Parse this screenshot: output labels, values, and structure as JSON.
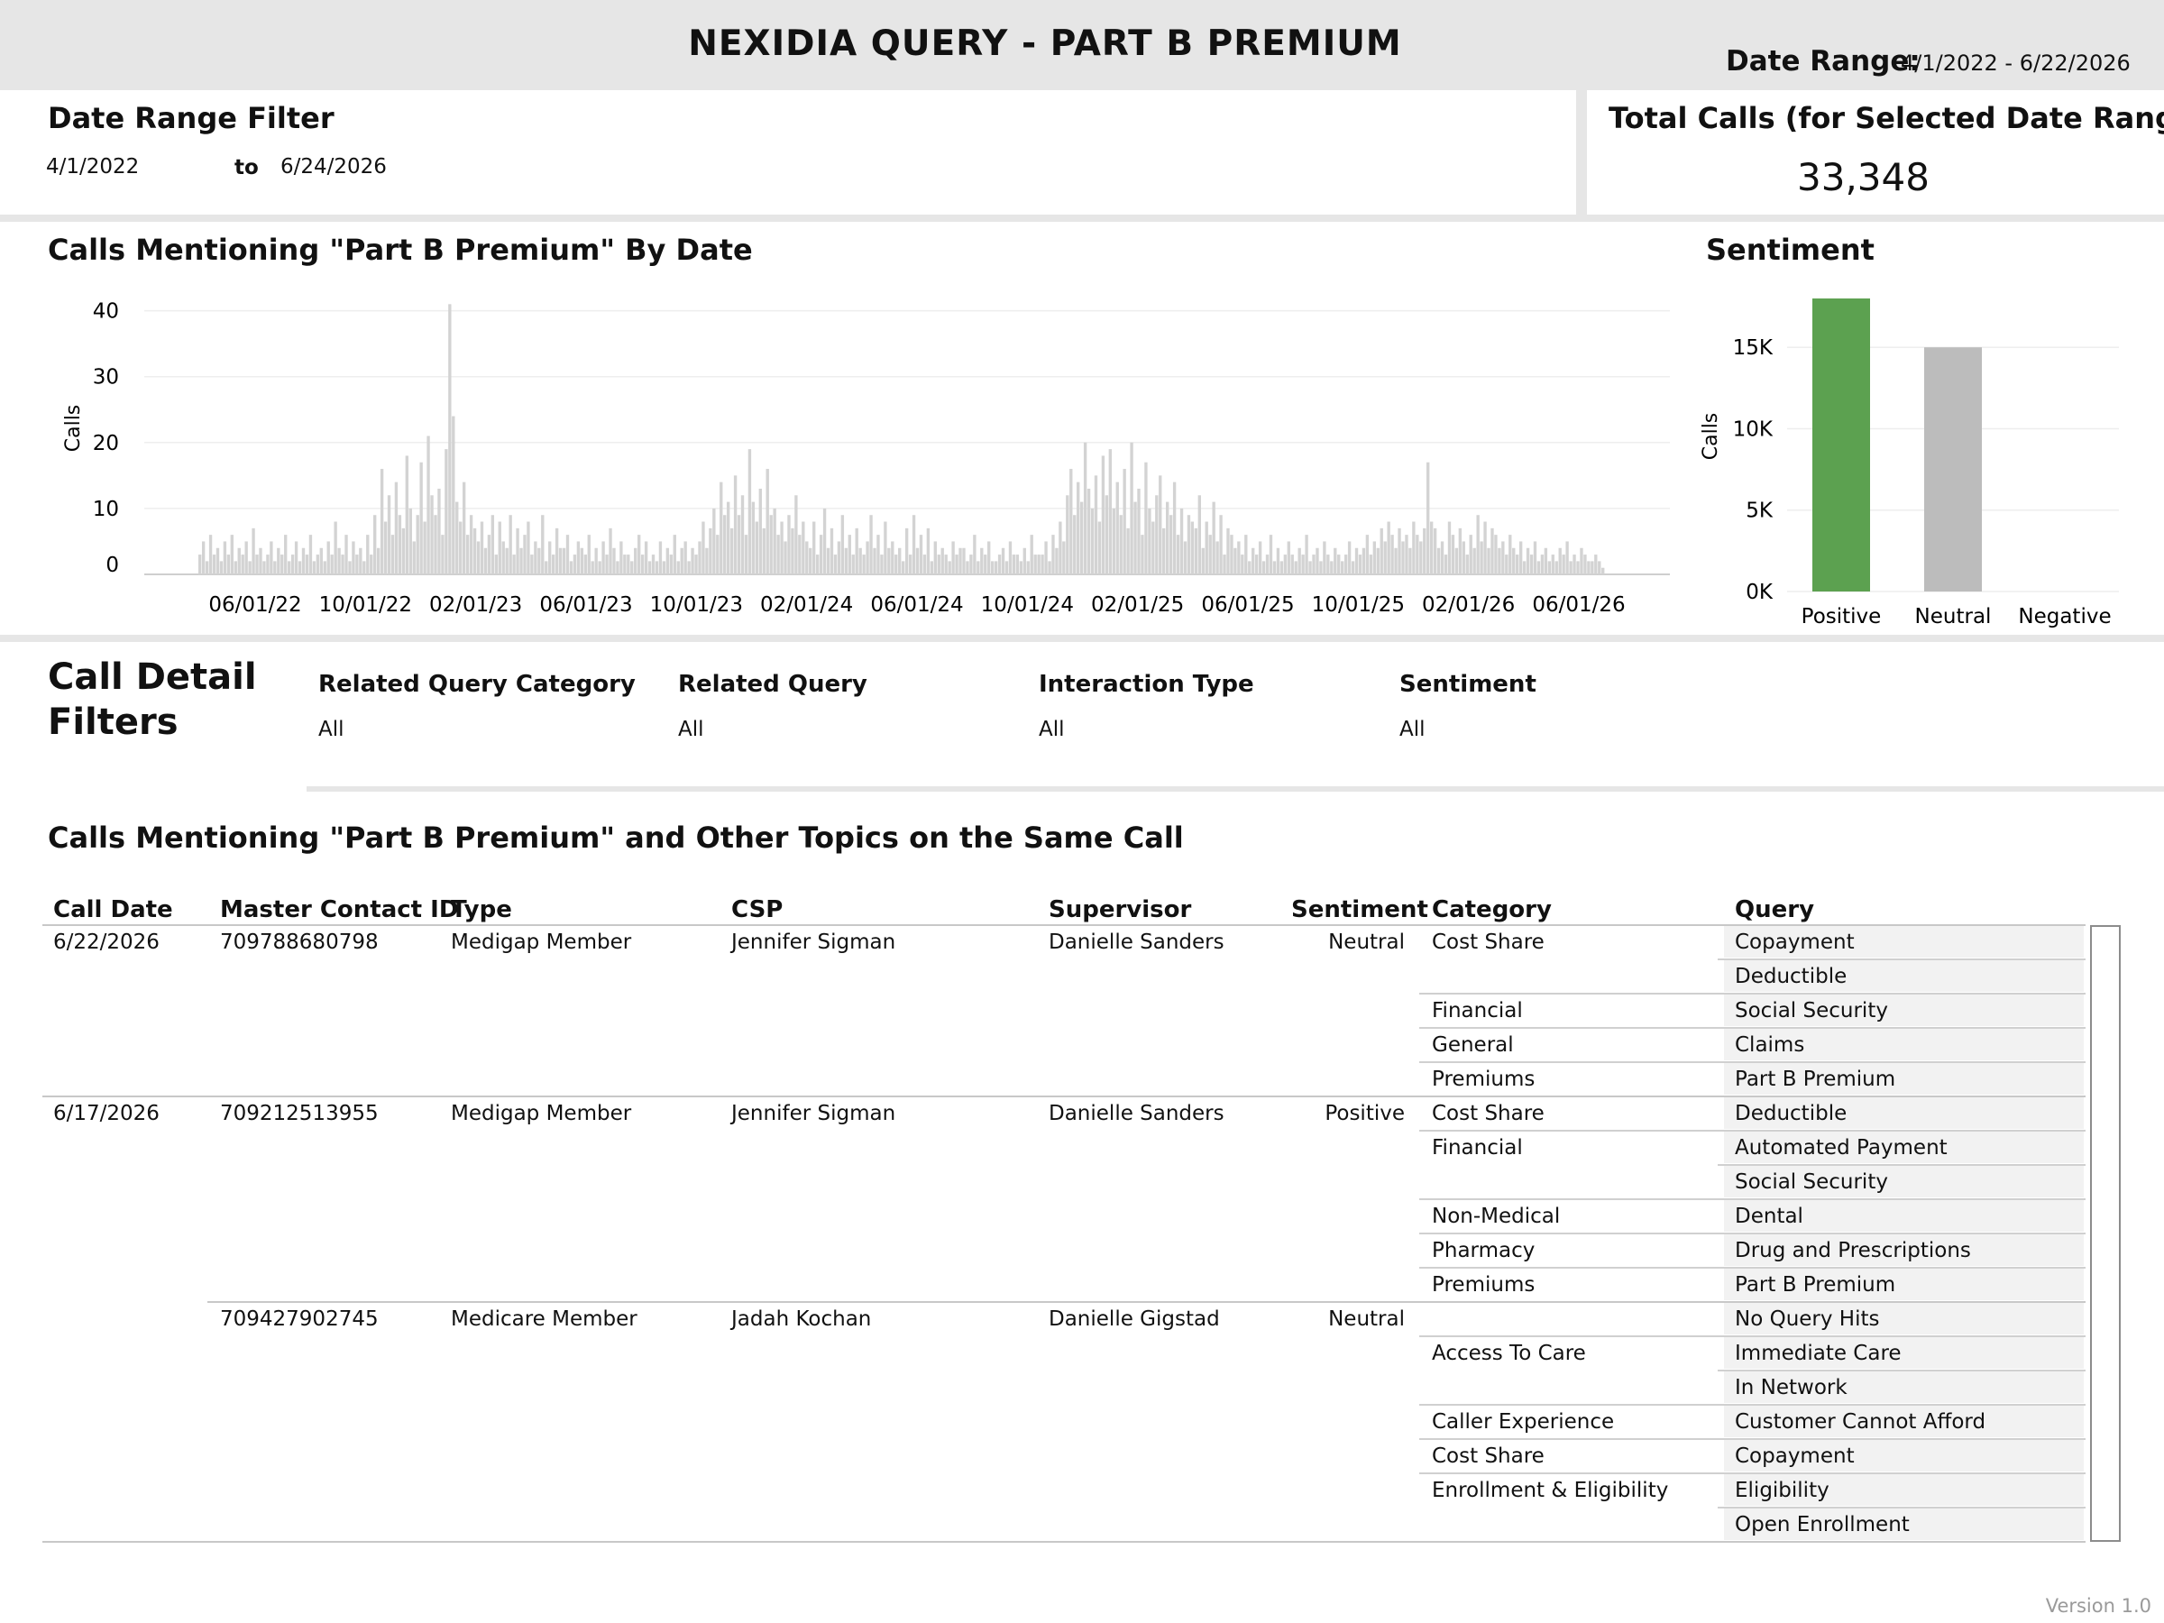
{
  "header": {
    "title": "NEXIDIA QUERY - PART B PREMIUM",
    "date_range_label": "Date Range:",
    "date_range_value": "4/1/2022 - 6/22/2026"
  },
  "date_filter": {
    "title": "Date Range Filter",
    "start": "4/1/2022",
    "to_label": "to",
    "end": "6/24/2026"
  },
  "total_calls": {
    "title": "Total Calls (for Selected Date Range)",
    "value": "33,348"
  },
  "colors": {
    "header_bg": "#e6e6e6",
    "bar_gray": "#d3d3d3",
    "positive_green": "#5ca150",
    "neutral_gray": "#bcbcbc",
    "query_cell_bg": "#f2f2f2",
    "grid": "#eeeeee"
  },
  "calls_by_date": {
    "title": "Calls Mentioning \"Part B Premium\" By Date",
    "ylabel": "Calls",
    "xlabel": "",
    "y_ticks": [
      "40",
      "30",
      "20",
      "10",
      "0"
    ],
    "x_ticks": [
      "06/01/22",
      "10/01/22",
      "02/01/23",
      "06/01/23",
      "10/01/23",
      "02/01/24",
      "06/01/24",
      "10/01/24",
      "02/01/25",
      "06/01/25",
      "10/01/25",
      "02/01/26",
      "06/01/26"
    ]
  },
  "sentiment_chart": {
    "title": "Sentiment",
    "ylabel": "Calls",
    "y_ticks": [
      "15K",
      "10K",
      "5K",
      "0K"
    ],
    "categories": [
      "Positive",
      "Neutral",
      "Negative"
    ]
  },
  "filters": {
    "title_line1": "Call Detail",
    "title_line2": "Filters",
    "items": [
      {
        "label": "Related Query Category",
        "value": "All"
      },
      {
        "label": "Related Query",
        "value": "All"
      },
      {
        "label": "Interaction Type",
        "value": "All"
      },
      {
        "label": "Sentiment",
        "value": "All"
      }
    ]
  },
  "detail_table": {
    "title": "Calls Mentioning \"Part B Premium\" and Other Topics on the Same Call",
    "columns": [
      "Call Date",
      "Master Contact ID",
      "Type",
      "CSP",
      "Supervisor",
      "Sentiment",
      "Category",
      "Query"
    ],
    "calls": [
      {
        "date": "6/22/2026",
        "id": "709788680798",
        "type": "Medigap Member",
        "csp": "Jennifer Sigman",
        "supervisor": "Danielle Sanders",
        "sentiment": "Neutral",
        "rows": [
          {
            "category": "Cost Share",
            "query": "Copayment"
          },
          {
            "category": "",
            "query": "Deductible"
          },
          {
            "category": "Financial",
            "query": "Social Security"
          },
          {
            "category": "General",
            "query": "Claims"
          },
          {
            "category": "Premiums",
            "query": "Part B Premium"
          }
        ]
      },
      {
        "date": "6/17/2026",
        "id": "709212513955",
        "type": "Medigap Member",
        "csp": "Jennifer Sigman",
        "supervisor": "Danielle Sanders",
        "sentiment": "Positive",
        "rows": [
          {
            "category": "Cost Share",
            "query": "Deductible"
          },
          {
            "category": "Financial",
            "query": "Automated Payment"
          },
          {
            "category": "",
            "query": "Social Security"
          },
          {
            "category": "Non-Medical",
            "query": "Dental"
          },
          {
            "category": "Pharmacy",
            "query": "Drug and Prescriptions"
          },
          {
            "category": "Premiums",
            "query": "Part B Premium"
          }
        ]
      },
      {
        "date": "",
        "id": "709427902745",
        "type": "Medicare Member",
        "csp": "Jadah Kochan",
        "supervisor": "Danielle Gigstad",
        "sentiment": "Neutral",
        "rows": [
          {
            "category": "",
            "query": "No Query Hits"
          },
          {
            "category": "Access To Care",
            "query": "Immediate Care"
          },
          {
            "category": "",
            "query": "In Network"
          },
          {
            "category": "Caller Experience",
            "query": "Customer Cannot Afford"
          },
          {
            "category": "Cost Share",
            "query": "Copayment"
          },
          {
            "category": "Enrollment & Eligibility",
            "query": "Eligibility"
          },
          {
            "category": "",
            "query": "Open Enrollment"
          }
        ]
      }
    ]
  },
  "footer": {
    "version": "Version 1.0"
  },
  "chart_data": [
    {
      "type": "bar",
      "title": "Calls Mentioning \"Part B Premium\" By Date",
      "xlabel": "",
      "ylabel": "Calls",
      "ylim": [
        0,
        42
      ],
      "x_range": [
        "2022-04-01",
        "2026-06-22"
      ],
      "x_ticks": [
        "06/01/22",
        "10/01/22",
        "02/01/23",
        "06/01/23",
        "10/01/23",
        "02/01/24",
        "06/01/24",
        "10/01/24",
        "02/01/25",
        "06/01/25",
        "10/01/25",
        "02/01/26",
        "06/01/26"
      ],
      "grid": true,
      "series": [
        {
          "values": [
            3,
            5,
            2,
            6,
            3,
            4,
            2,
            5,
            3,
            6,
            2,
            4,
            3,
            5,
            2,
            7,
            3,
            4,
            2,
            3,
            5,
            2,
            4,
            3,
            6,
            2,
            3,
            5,
            2,
            4,
            3,
            6,
            2,
            3,
            4,
            2,
            5,
            3,
            8,
            4,
            3,
            6,
            2,
            5,
            3,
            4,
            2,
            6,
            3,
            9,
            4,
            16,
            8,
            12,
            6,
            14,
            9,
            7,
            18,
            10,
            5,
            9,
            17,
            8,
            21,
            12,
            9,
            13,
            6,
            19,
            41,
            24,
            11,
            8,
            14,
            6,
            9,
            7,
            5,
            8,
            4,
            6,
            9,
            3,
            8,
            5,
            4,
            9,
            3,
            7,
            4,
            6,
            8,
            3,
            5,
            4,
            9,
            2,
            5,
            3,
            7,
            4,
            4,
            6,
            2,
            3,
            5,
            4,
            3,
            6,
            2,
            4,
            2,
            5,
            3,
            7,
            4,
            2,
            5,
            3,
            3,
            2,
            4,
            6,
            3,
            5,
            2,
            3,
            2,
            5,
            2,
            4,
            3,
            6,
            2,
            4,
            5,
            2,
            4,
            3,
            5,
            8,
            4,
            7,
            10,
            6,
            14,
            9,
            11,
            7,
            15,
            9,
            12,
            6,
            19,
            11,
            8,
            13,
            7,
            16,
            9,
            10,
            6,
            8,
            5,
            9,
            7,
            12,
            6,
            8,
            5,
            4,
            8,
            3,
            6,
            10,
            4,
            7,
            3,
            5,
            9,
            4,
            6,
            3,
            7,
            4,
            3,
            5,
            9,
            4,
            6,
            3,
            8,
            4,
            5,
            3,
            4,
            2,
            7,
            3,
            9,
            4,
            6,
            3,
            7,
            2,
            5,
            3,
            4,
            3,
            2,
            5,
            3,
            4,
            4,
            2,
            3,
            6,
            2,
            4,
            3,
            5,
            2,
            2,
            3,
            4,
            2,
            5,
            3,
            3,
            2,
            4,
            2,
            6,
            3,
            3,
            3,
            5,
            2,
            6,
            4,
            8,
            5,
            12,
            16,
            9,
            14,
            11,
            20,
            13,
            10,
            15,
            8,
            18,
            12,
            19,
            10,
            14,
            9,
            16,
            7,
            20,
            11,
            13,
            6,
            17,
            10,
            8,
            12,
            15,
            7,
            11,
            9,
            14,
            6,
            10,
            5,
            9,
            8,
            7,
            12,
            4,
            8,
            6,
            11,
            5,
            9,
            3,
            7,
            6,
            4,
            5,
            3,
            6,
            2,
            4,
            3,
            5,
            2,
            3,
            6,
            2,
            4,
            2,
            3,
            5,
            3,
            2,
            4,
            3,
            6,
            2,
            3,
            4,
            2,
            5,
            3,
            2,
            4,
            3,
            2,
            3,
            5,
            2,
            4,
            3,
            4,
            6,
            3,
            5,
            4,
            7,
            5,
            8,
            6,
            4,
            7,
            5,
            6,
            4,
            8,
            6,
            5,
            7,
            17,
            8,
            7,
            4,
            5,
            3,
            8,
            6,
            4,
            7,
            5,
            3,
            6,
            4,
            9,
            5,
            8,
            4,
            7,
            6,
            4,
            5,
            3,
            6,
            4,
            3,
            5,
            2,
            4,
            3,
            5,
            2,
            3,
            4,
            2,
            3,
            2,
            4,
            3,
            5,
            2,
            3,
            2,
            4,
            3,
            2,
            2,
            3,
            2,
            1
          ],
          "note_values_are_daily_call_counts": ""
        }
      ]
    },
    {
      "type": "bar",
      "title": "Sentiment",
      "ylabel": "Calls",
      "categories": [
        "Positive",
        "Neutral",
        "Negative"
      ],
      "values": [
        18000,
        15000,
        0
      ],
      "colors": [
        "#5ca150",
        "#bcbcbc",
        "#bcbcbc"
      ],
      "ylim": [
        0,
        18500
      ],
      "grid": true
    }
  ]
}
